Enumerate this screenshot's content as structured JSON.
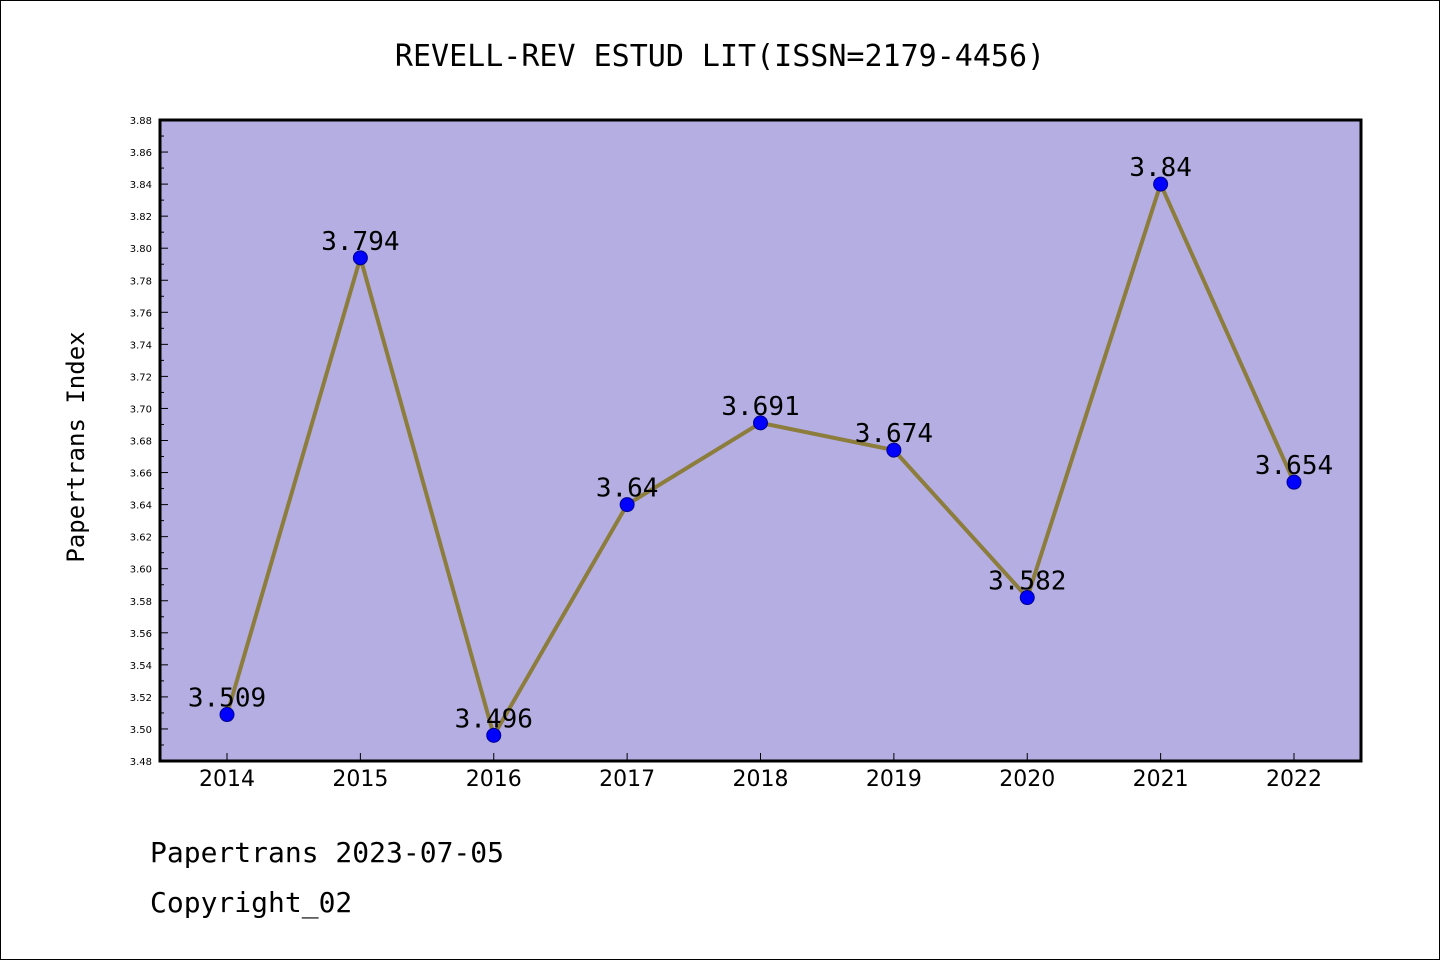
{
  "chart_data": {
    "type": "line",
    "title": "REVELL-REV ESTUD LIT(ISSN=2179-4456)",
    "xlabel": "",
    "ylabel": "Papertrans Index",
    "categories": [
      "2014",
      "2015",
      "2016",
      "2017",
      "2018",
      "2019",
      "2020",
      "2021",
      "2022"
    ],
    "values": [
      3.509,
      3.794,
      3.496,
      3.64,
      3.691,
      3.674,
      3.582,
      3.84,
      3.654
    ],
    "data_labels": [
      "3.509",
      "3.794",
      "3.496",
      "3.64",
      "3.691",
      "3.674",
      "3.582",
      "3.84",
      "3.654"
    ],
    "ylim": [
      3.48,
      3.88
    ],
    "yticks": [
      "3.48",
      "3.50",
      "3.52",
      "3.54",
      "3.56",
      "3.58",
      "3.60",
      "3.62",
      "3.64",
      "3.66",
      "3.68",
      "3.70",
      "3.72",
      "3.74",
      "3.76",
      "3.78",
      "3.80",
      "3.82",
      "3.84",
      "3.86",
      "3.88"
    ],
    "grid": false,
    "legend": "none",
    "colors": {
      "plot_background": "#b5aee2",
      "line": "#8c7d3c",
      "marker": "#0000ff"
    }
  },
  "footer": {
    "date_line": "Papertrans 2023-07-05",
    "copyright_line": "Copyright_02"
  }
}
